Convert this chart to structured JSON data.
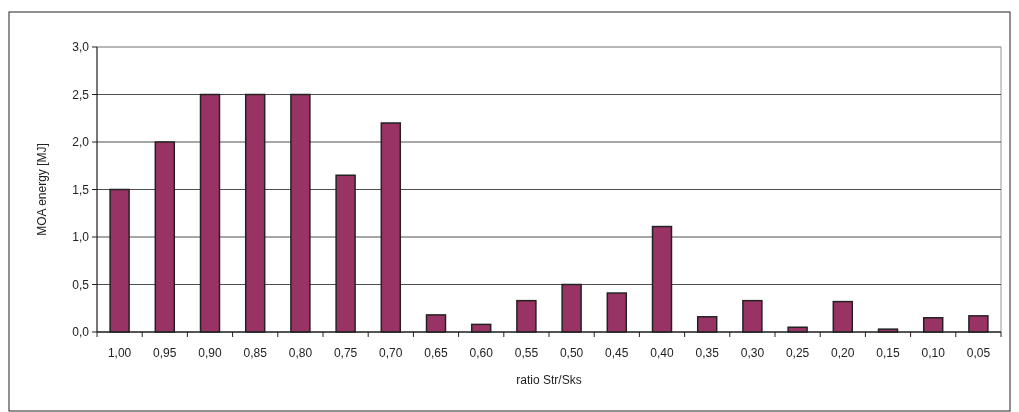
{
  "chart_data": {
    "type": "bar",
    "xlabel": "ratio Str/Sks",
    "ylabel": "MOA energy [MJ]",
    "categories": [
      "1,00",
      "0,95",
      "0,90",
      "0,85",
      "0,80",
      "0,75",
      "0,70",
      "0,65",
      "0,60",
      "0,55",
      "0,50",
      "0,45",
      "0,40",
      "0,35",
      "0,30",
      "0,25",
      "0,20",
      "0,15",
      "0,10",
      "0,05"
    ],
    "values": [
      1.5,
      2.0,
      2.5,
      2.5,
      2.5,
      1.65,
      2.2,
      0.18,
      0.08,
      0.33,
      0.5,
      0.41,
      1.11,
      0.16,
      0.33,
      0.05,
      0.32,
      0.03,
      0.15,
      0.17
    ],
    "color": "#993366",
    "ylim": [
      0,
      3
    ],
    "yticks": [
      {
        "value": 0,
        "label": "0,0"
      },
      {
        "value": 0.5,
        "label": "0,5"
      },
      {
        "value": 1,
        "label": "1,0"
      },
      {
        "value": 1.5,
        "label": "1,5"
      },
      {
        "value": 2,
        "label": "2,0"
      },
      {
        "value": 2.5,
        "label": "2,5"
      },
      {
        "value": 3,
        "label": "3,0"
      }
    ],
    "grid": "y"
  }
}
